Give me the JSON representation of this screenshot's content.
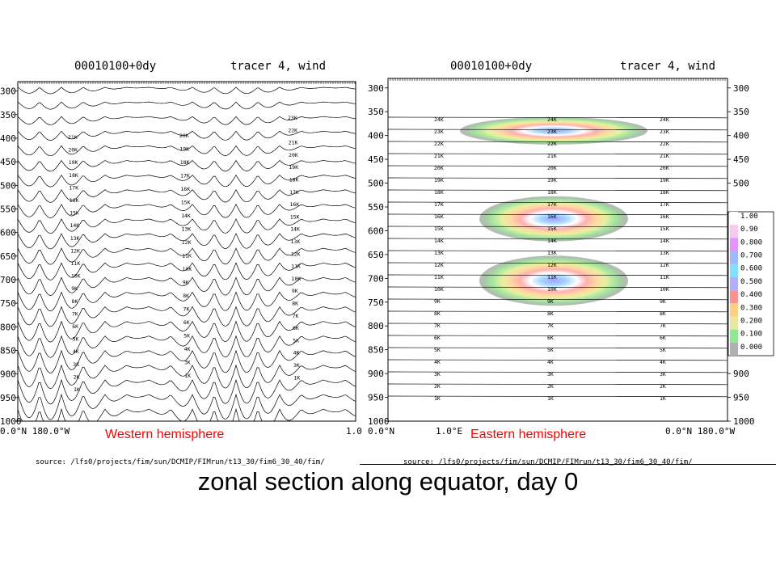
{
  "caption": "zonal section along equator, day 0",
  "left_panel": {
    "date_label": "00010100+0dy",
    "field_label": "tracer 4, wind",
    "hemisphere_label": "Western hemisphere",
    "x_tick_labels": [
      "0.0°N 180.0°W",
      "1.0"
    ],
    "source_text": "source: /lfs0/projects/fim/sun/DCMIP/FIMrun/t13_30/fim6_30_40/fim/"
  },
  "right_panel": {
    "date_label": "00010100+0dy",
    "field_label": "tracer 4, wind",
    "hemisphere_label": "Eastern hemisphere",
    "x_tick_labels": [
      "0.0°N",
      "1.0°E",
      "0.0°N 180.0°W"
    ],
    "source_text": "source: /lfs0/projects/fim/sun/DCMIP/FIMrun/t13_30/fim6_30_40/fim/"
  },
  "chart_data": [
    {
      "type": "contour",
      "panel": "western hemisphere",
      "y_axis": {
        "ticks": [
          300,
          350,
          400,
          450,
          500,
          550,
          600,
          650,
          700,
          750,
          800,
          850,
          900,
          950,
          1000
        ],
        "ylim": [
          1000,
          280
        ],
        "sides": [
          "left"
        ]
      },
      "contour_lines": "potential temperature levels 1K–23K, strongly oscillating in longitude",
      "k_label_columns": [
        [
          "21K",
          "20K",
          "19K",
          "18K",
          "17K",
          "16K",
          "15K",
          "14K",
          "13K",
          "12K",
          "11K",
          "10K",
          "9K",
          "8K",
          "7K",
          "6K",
          "5K",
          "4K",
          "3K",
          "2K",
          "1K"
        ],
        [
          "20K",
          "19K",
          "18K",
          "17K",
          "16K",
          "15K",
          "14K",
          "13K",
          "12K",
          "11K",
          "10K",
          "9K",
          "8K",
          "7K",
          "6K",
          "5K",
          "4K",
          "3K",
          "1K"
        ],
        [
          "23K",
          "22K",
          "21K",
          "20K",
          "19K",
          "18K",
          "17K",
          "16K",
          "15K",
          "14K",
          "13K",
          "12K",
          "11K",
          "10K",
          "9K",
          "8K",
          "7K",
          "6K",
          "5K",
          "4K",
          "3K",
          "1K"
        ]
      ],
      "tracer_blobs": []
    },
    {
      "type": "contour",
      "panel": "eastern hemisphere",
      "y_axis": {
        "ticks": [
          300,
          350,
          400,
          450,
          500,
          550,
          600,
          650,
          700,
          750,
          800,
          850,
          900,
          950,
          1000
        ],
        "ylim": [
          1000,
          280
        ],
        "sides": [
          "left",
          "right"
        ]
      },
      "k_levels": [
        "24K",
        "23K",
        "22K",
        "21K",
        "20K",
        "19K",
        "18K",
        "17K",
        "16K",
        "15K",
        "14K",
        "13K",
        "12K",
        "11K",
        "10K",
        "9K",
        "8K",
        "7K",
        "6K",
        "5K",
        "4K",
        "3K",
        "2K",
        "1K"
      ],
      "tracer_blobs": [
        {
          "center_pressure": 390,
          "peak": 1.0
        },
        {
          "center_pressure": 575,
          "peak": 0.85
        },
        {
          "center_pressure": 705,
          "peak": 0.8
        }
      ],
      "colorbar": {
        "labels": [
          "1.00",
          "0.90",
          "0.800",
          "0.700",
          "0.600",
          "0.500",
          "0.400",
          "0.300",
          "0.200",
          "0.100",
          "0.000"
        ],
        "colors": [
          "#ffffff",
          "#f6c9f0",
          "#e790ff",
          "#a0b8ff",
          "#7fe0ff",
          "#b0b0ff",
          "#ff9090",
          "#ffd080",
          "#e8e8a0",
          "#90e890",
          "#b0b0b0"
        ]
      }
    }
  ]
}
